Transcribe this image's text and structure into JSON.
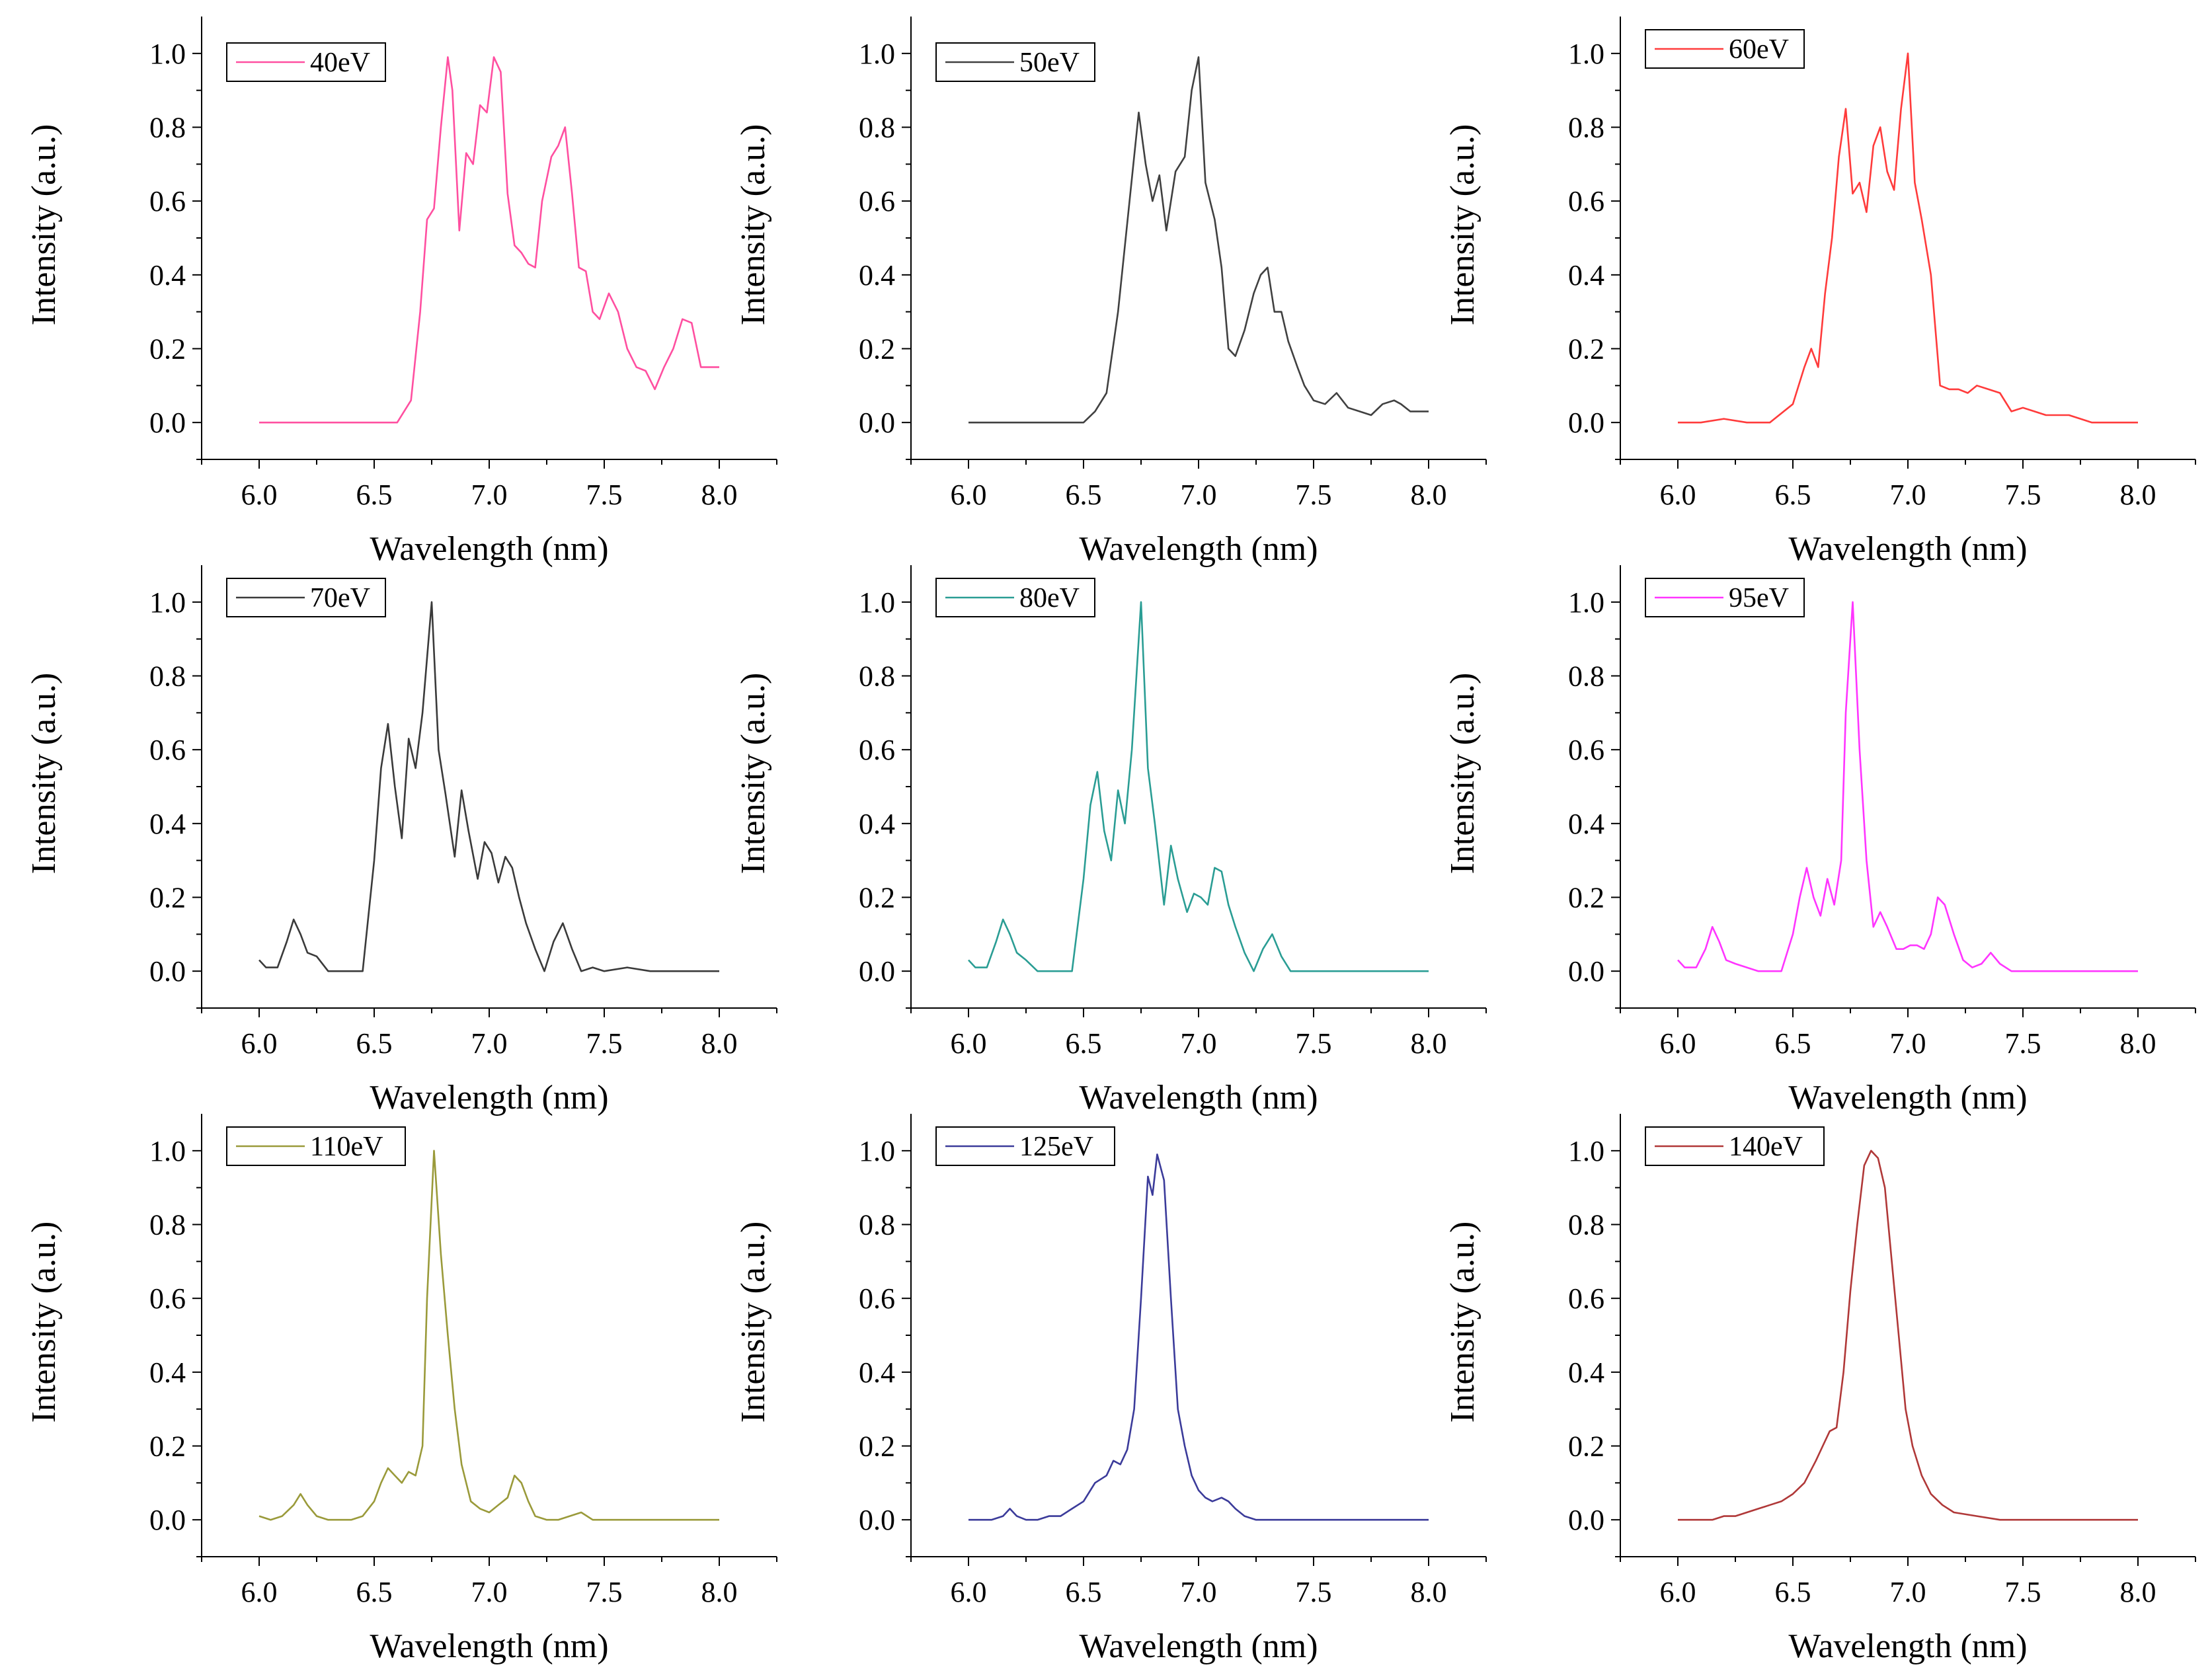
{
  "chart_data": [
    {
      "type": "line",
      "xlabel": "Wavelength (nm)",
      "ylabel": "Intensity (a.u.)",
      "xlim": [
        5.75,
        8.25
      ],
      "ylim": [
        -0.1,
        1.1
      ],
      "xticks": [
        "6.0",
        "6.5",
        "7.0",
        "7.5",
        "8.0"
      ],
      "yticks": [
        "0.0",
        "0.2",
        "0.4",
        "0.6",
        "0.8",
        "1.0"
      ],
      "series": [
        {
          "name": "40eV",
          "color": "#ff4fa0",
          "x": [
            6.0,
            6.5,
            6.6,
            6.66,
            6.7,
            6.73,
            6.76,
            6.79,
            6.82,
            6.84,
            6.87,
            6.9,
            6.93,
            6.96,
            6.99,
            7.02,
            7.05,
            7.08,
            7.11,
            7.14,
            7.17,
            7.2,
            7.23,
            7.27,
            7.3,
            7.33,
            7.36,
            7.39,
            7.42,
            7.45,
            7.48,
            7.52,
            7.56,
            7.6,
            7.64,
            7.68,
            7.72,
            7.76,
            7.8,
            7.84,
            7.88,
            7.92,
            7.96,
            8.0
          ],
          "y": [
            0.0,
            0.0,
            0.0,
            0.06,
            0.3,
            0.55,
            0.58,
            0.8,
            0.99,
            0.9,
            0.52,
            0.73,
            0.7,
            0.86,
            0.84,
            0.99,
            0.95,
            0.62,
            0.48,
            0.46,
            0.43,
            0.42,
            0.6,
            0.72,
            0.75,
            0.8,
            0.62,
            0.42,
            0.41,
            0.3,
            0.28,
            0.35,
            0.3,
            0.2,
            0.15,
            0.14,
            0.09,
            0.15,
            0.2,
            0.28,
            0.27,
            0.15,
            0.15,
            0.15
          ]
        }
      ]
    },
    {
      "type": "line",
      "xlabel": "Wavelength (nm)",
      "ylabel": "Intensity (a.u.)",
      "xlim": [
        5.75,
        8.25
      ],
      "ylim": [
        -0.1,
        1.1
      ],
      "xticks": [
        "6.0",
        "6.5",
        "7.0",
        "7.5",
        "8.0"
      ],
      "yticks": [
        "0.0",
        "0.2",
        "0.4",
        "0.6",
        "0.8",
        "1.0"
      ],
      "series": [
        {
          "name": "50eV",
          "color": "#404040",
          "x": [
            6.0,
            6.4,
            6.5,
            6.55,
            6.6,
            6.65,
            6.7,
            6.74,
            6.77,
            6.8,
            6.83,
            6.86,
            6.9,
            6.94,
            6.97,
            7.0,
            7.03,
            7.07,
            7.1,
            7.13,
            7.16,
            7.2,
            7.24,
            7.27,
            7.3,
            7.33,
            7.36,
            7.39,
            7.43,
            7.46,
            7.5,
            7.55,
            7.6,
            7.65,
            7.7,
            7.75,
            7.8,
            7.85,
            7.88,
            7.92,
            7.96,
            8.0
          ],
          "y": [
            0.0,
            0.0,
            0.0,
            0.03,
            0.08,
            0.3,
            0.6,
            0.84,
            0.7,
            0.6,
            0.67,
            0.52,
            0.68,
            0.72,
            0.9,
            0.99,
            0.65,
            0.55,
            0.42,
            0.2,
            0.18,
            0.25,
            0.35,
            0.4,
            0.42,
            0.3,
            0.3,
            0.22,
            0.15,
            0.1,
            0.06,
            0.05,
            0.08,
            0.04,
            0.03,
            0.02,
            0.05,
            0.06,
            0.05,
            0.03,
            0.03,
            0.03
          ]
        }
      ]
    },
    {
      "type": "line",
      "xlabel": "Wavelength (nm)",
      "ylabel": "Intensity (a.u.)",
      "xlim": [
        5.75,
        8.25
      ],
      "ylim": [
        -0.1,
        1.1
      ],
      "xticks": [
        "6.0",
        "6.5",
        "7.0",
        "7.5",
        "8.0"
      ],
      "yticks": [
        "0.0",
        "0.2",
        "0.4",
        "0.6",
        "0.8",
        "1.0"
      ],
      "series": [
        {
          "name": "60eV",
          "color": "#ff3b3b",
          "x": [
            6.0,
            6.1,
            6.2,
            6.3,
            6.4,
            6.5,
            6.55,
            6.58,
            6.61,
            6.64,
            6.67,
            6.7,
            6.73,
            6.76,
            6.79,
            6.82,
            6.85,
            6.88,
            6.91,
            6.94,
            6.97,
            7.0,
            7.03,
            7.06,
            7.1,
            7.14,
            7.18,
            7.22,
            7.26,
            7.3,
            7.35,
            7.4,
            7.45,
            7.5,
            7.55,
            7.6,
            7.7,
            7.8,
            7.9,
            8.0
          ],
          "y": [
            0.0,
            0.0,
            0.01,
            0.0,
            0.0,
            0.05,
            0.15,
            0.2,
            0.15,
            0.35,
            0.5,
            0.72,
            0.85,
            0.62,
            0.65,
            0.57,
            0.75,
            0.8,
            0.68,
            0.63,
            0.85,
            1.0,
            0.65,
            0.55,
            0.4,
            0.1,
            0.09,
            0.09,
            0.08,
            0.1,
            0.09,
            0.08,
            0.03,
            0.04,
            0.03,
            0.02,
            0.02,
            0.0,
            0.0,
            0.0
          ]
        }
      ]
    },
    {
      "type": "line",
      "xlabel": "Wavelength (nm)",
      "ylabel": "Intensity (a.u.)",
      "xlim": [
        5.75,
        8.25
      ],
      "ylim": [
        -0.1,
        1.1
      ],
      "xticks": [
        "6.0",
        "6.5",
        "7.0",
        "7.5",
        "8.0"
      ],
      "yticks": [
        "0.0",
        "0.2",
        "0.4",
        "0.6",
        "0.8",
        "1.0"
      ],
      "series": [
        {
          "name": "70eV",
          "color": "#3a3a3a",
          "x": [
            6.0,
            6.03,
            6.08,
            6.12,
            6.15,
            6.18,
            6.21,
            6.25,
            6.3,
            6.35,
            6.4,
            6.45,
            6.5,
            6.53,
            6.56,
            6.59,
            6.62,
            6.65,
            6.68,
            6.71,
            6.75,
            6.78,
            6.81,
            6.85,
            6.88,
            6.91,
            6.95,
            6.98,
            7.01,
            7.04,
            7.07,
            7.1,
            7.13,
            7.16,
            7.2,
            7.24,
            7.28,
            7.32,
            7.36,
            7.4,
            7.45,
            7.5,
            7.6,
            7.7,
            7.8,
            8.0
          ],
          "y": [
            0.03,
            0.01,
            0.01,
            0.08,
            0.14,
            0.1,
            0.05,
            0.04,
            0.0,
            0.0,
            0.0,
            0.0,
            0.3,
            0.55,
            0.67,
            0.5,
            0.36,
            0.63,
            0.55,
            0.7,
            1.0,
            0.6,
            0.48,
            0.31,
            0.49,
            0.38,
            0.25,
            0.35,
            0.32,
            0.24,
            0.31,
            0.28,
            0.2,
            0.13,
            0.06,
            0.0,
            0.08,
            0.13,
            0.06,
            0.0,
            0.01,
            0.0,
            0.01,
            0.0,
            0.0,
            0.0
          ]
        }
      ]
    },
    {
      "type": "line",
      "xlabel": "Wavelength (nm)",
      "ylabel": "Intensity (a.u.)",
      "xlim": [
        5.75,
        8.25
      ],
      "ylim": [
        -0.1,
        1.1
      ],
      "xticks": [
        "6.0",
        "6.5",
        "7.0",
        "7.5",
        "8.0"
      ],
      "yticks": [
        "0.0",
        "0.2",
        "0.4",
        "0.6",
        "0.8",
        "1.0"
      ],
      "series": [
        {
          "name": "80eV",
          "color": "#2a9d94",
          "x": [
            6.0,
            6.03,
            6.08,
            6.12,
            6.15,
            6.18,
            6.21,
            6.25,
            6.3,
            6.35,
            6.4,
            6.45,
            6.5,
            6.53,
            6.56,
            6.59,
            6.62,
            6.65,
            6.68,
            6.71,
            6.75,
            6.78,
            6.81,
            6.85,
            6.88,
            6.91,
            6.95,
            6.98,
            7.01,
            7.04,
            7.07,
            7.1,
            7.13,
            7.16,
            7.2,
            7.24,
            7.28,
            7.32,
            7.36,
            7.4,
            7.45,
            7.5,
            7.6,
            7.7,
            7.8,
            8.0
          ],
          "y": [
            0.03,
            0.01,
            0.01,
            0.08,
            0.14,
            0.1,
            0.05,
            0.03,
            0.0,
            0.0,
            0.0,
            0.0,
            0.25,
            0.45,
            0.54,
            0.38,
            0.3,
            0.49,
            0.4,
            0.6,
            1.0,
            0.55,
            0.4,
            0.18,
            0.34,
            0.25,
            0.16,
            0.21,
            0.2,
            0.18,
            0.28,
            0.27,
            0.18,
            0.12,
            0.05,
            0.0,
            0.06,
            0.1,
            0.04,
            0.0,
            0.0,
            0.0,
            0.0,
            0.0,
            0.0,
            0.0
          ]
        }
      ]
    },
    {
      "type": "line",
      "xlabel": "Wavelength (nm)",
      "ylabel": "Intensity (a.u.)",
      "xlim": [
        5.75,
        8.25
      ],
      "ylim": [
        -0.1,
        1.1
      ],
      "xticks": [
        "6.0",
        "6.5",
        "7.0",
        "7.5",
        "8.0"
      ],
      "yticks": [
        "0.0",
        "0.2",
        "0.4",
        "0.6",
        "0.8",
        "1.0"
      ],
      "series": [
        {
          "name": "95eV",
          "color": "#ff35ff",
          "x": [
            6.0,
            6.03,
            6.08,
            6.12,
            6.15,
            6.18,
            6.21,
            6.25,
            6.3,
            6.35,
            6.4,
            6.45,
            6.5,
            6.53,
            6.56,
            6.59,
            6.62,
            6.65,
            6.68,
            6.71,
            6.73,
            6.76,
            6.79,
            6.82,
            6.85,
            6.88,
            6.91,
            6.95,
            6.98,
            7.01,
            7.04,
            7.07,
            7.1,
            7.13,
            7.16,
            7.2,
            7.24,
            7.28,
            7.32,
            7.36,
            7.4,
            7.45,
            7.5,
            7.6,
            7.7,
            7.8,
            8.0
          ],
          "y": [
            0.03,
            0.01,
            0.01,
            0.06,
            0.12,
            0.08,
            0.03,
            0.02,
            0.01,
            0.0,
            0.0,
            0.0,
            0.1,
            0.2,
            0.28,
            0.2,
            0.15,
            0.25,
            0.18,
            0.3,
            0.7,
            1.0,
            0.6,
            0.3,
            0.12,
            0.16,
            0.12,
            0.06,
            0.06,
            0.07,
            0.07,
            0.06,
            0.1,
            0.2,
            0.18,
            0.1,
            0.03,
            0.01,
            0.02,
            0.05,
            0.02,
            0.0,
            0.0,
            0.0,
            0.0,
            0.0,
            0.0
          ]
        }
      ]
    },
    {
      "type": "line",
      "xlabel": "Wavelength (nm)",
      "ylabel": "Intensity (a.u.)",
      "xlim": [
        5.75,
        8.25
      ],
      "ylim": [
        -0.1,
        1.1
      ],
      "xticks": [
        "6.0",
        "6.5",
        "7.0",
        "7.5",
        "8.0"
      ],
      "yticks": [
        "0.0",
        "0.2",
        "0.4",
        "0.6",
        "0.8",
        "1.0"
      ],
      "series": [
        {
          "name": "110eV",
          "color": "#9a9a3a",
          "x": [
            6.0,
            6.05,
            6.1,
            6.15,
            6.18,
            6.21,
            6.25,
            6.3,
            6.35,
            6.4,
            6.45,
            6.5,
            6.53,
            6.56,
            6.59,
            6.62,
            6.65,
            6.68,
            6.71,
            6.73,
            6.76,
            6.79,
            6.82,
            6.85,
            6.88,
            6.92,
            6.96,
            7.0,
            7.04,
            7.08,
            7.11,
            7.14,
            7.17,
            7.2,
            7.25,
            7.3,
            7.35,
            7.4,
            7.45,
            7.5,
            7.6,
            7.8,
            8.0
          ],
          "y": [
            0.01,
            0.0,
            0.01,
            0.04,
            0.07,
            0.04,
            0.01,
            0.0,
            0.0,
            0.0,
            0.01,
            0.05,
            0.1,
            0.14,
            0.12,
            0.1,
            0.13,
            0.12,
            0.2,
            0.6,
            1.0,
            0.72,
            0.5,
            0.3,
            0.15,
            0.05,
            0.03,
            0.02,
            0.04,
            0.06,
            0.12,
            0.1,
            0.05,
            0.01,
            0.0,
            0.0,
            0.01,
            0.02,
            0.0,
            0.0,
            0.0,
            0.0,
            0.0
          ]
        }
      ]
    },
    {
      "type": "line",
      "xlabel": "Wavelength (nm)",
      "ylabel": "Intensity (a.u.)",
      "xlim": [
        5.75,
        8.25
      ],
      "ylim": [
        -0.1,
        1.1
      ],
      "xticks": [
        "6.0",
        "6.5",
        "7.0",
        "7.5",
        "8.0"
      ],
      "yticks": [
        "0.0",
        "0.2",
        "0.4",
        "0.6",
        "0.8",
        "1.0"
      ],
      "series": [
        {
          "name": "125eV",
          "color": "#3b3b9a",
          "x": [
            6.0,
            6.05,
            6.1,
            6.15,
            6.18,
            6.21,
            6.25,
            6.3,
            6.35,
            6.4,
            6.45,
            6.5,
            6.55,
            6.6,
            6.63,
            6.66,
            6.69,
            6.72,
            6.75,
            6.78,
            6.8,
            6.82,
            6.85,
            6.88,
            6.91,
            6.94,
            6.97,
            7.0,
            7.03,
            7.06,
            7.1,
            7.13,
            7.16,
            7.2,
            7.25,
            7.3,
            7.35,
            7.4,
            7.5,
            7.6,
            7.8,
            8.0
          ],
          "y": [
            0.0,
            0.0,
            0.0,
            0.01,
            0.03,
            0.01,
            0.0,
            0.0,
            0.01,
            0.01,
            0.03,
            0.05,
            0.1,
            0.12,
            0.16,
            0.15,
            0.19,
            0.3,
            0.6,
            0.93,
            0.88,
            0.99,
            0.92,
            0.6,
            0.3,
            0.2,
            0.12,
            0.08,
            0.06,
            0.05,
            0.06,
            0.05,
            0.03,
            0.01,
            0.0,
            0.0,
            0.0,
            0.0,
            0.0,
            0.0,
            0.0,
            0.0
          ]
        }
      ]
    },
    {
      "type": "line",
      "xlabel": "Wavelength (nm)",
      "ylabel": "Intensity (a.u.)",
      "xlim": [
        5.75,
        8.25
      ],
      "ylim": [
        -0.1,
        1.1
      ],
      "xticks": [
        "6.0",
        "6.5",
        "7.0",
        "7.5",
        "8.0"
      ],
      "yticks": [
        "0.0",
        "0.2",
        "0.4",
        "0.6",
        "0.8",
        "1.0"
      ],
      "series": [
        {
          "name": "140eV",
          "color": "#b03838",
          "x": [
            6.0,
            6.1,
            6.15,
            6.2,
            6.25,
            6.3,
            6.35,
            6.4,
            6.45,
            6.5,
            6.55,
            6.6,
            6.63,
            6.66,
            6.69,
            6.72,
            6.75,
            6.78,
            6.81,
            6.84,
            6.87,
            6.9,
            6.93,
            6.96,
            6.99,
            7.02,
            7.06,
            7.1,
            7.15,
            7.2,
            7.3,
            7.4,
            7.5,
            7.6,
            7.8,
            8.0
          ],
          "y": [
            0.0,
            0.0,
            0.0,
            0.01,
            0.01,
            0.02,
            0.03,
            0.04,
            0.05,
            0.07,
            0.1,
            0.16,
            0.2,
            0.24,
            0.25,
            0.4,
            0.62,
            0.8,
            0.96,
            1.0,
            0.98,
            0.9,
            0.7,
            0.5,
            0.3,
            0.2,
            0.12,
            0.07,
            0.04,
            0.02,
            0.01,
            0.0,
            0.0,
            0.0,
            0.0,
            0.0
          ]
        }
      ]
    }
  ]
}
